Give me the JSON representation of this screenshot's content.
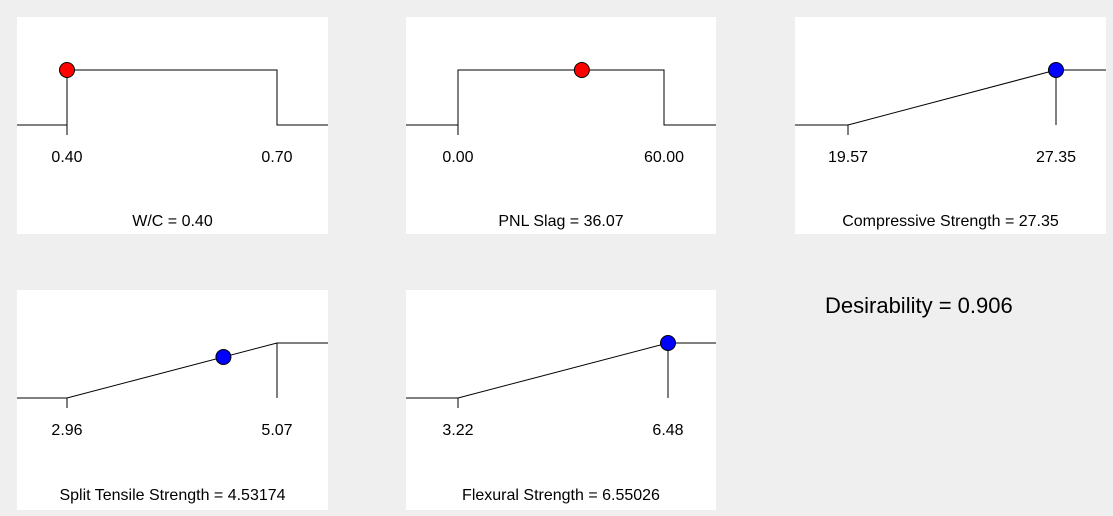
{
  "colors": {
    "factor_point": "#ff0000",
    "response_point": "#0000ff",
    "line": "#000000",
    "panel_bg": "#ffffff",
    "page_bg": "#efefef"
  },
  "chart_data": [
    {
      "type": "line",
      "kind": "factor",
      "label": "W/C = 0.40",
      "low": "0.40",
      "high": "0.70",
      "low_value": 0.4,
      "high_value": 0.7,
      "current": 0.4,
      "shape": "box"
    },
    {
      "type": "line",
      "kind": "factor",
      "label": "PNL Slag = 36.07",
      "low": "0.00",
      "high": "60.00",
      "low_value": 0.0,
      "high_value": 60.0,
      "current": 36.07,
      "shape": "box"
    },
    {
      "type": "line",
      "kind": "response",
      "label": "Compressive Strength = 27.35",
      "low": "19.57",
      "high": "27.35",
      "low_value": 19.57,
      "high_value": 27.35,
      "current": 27.35,
      "shape": "ramp"
    },
    {
      "type": "line",
      "kind": "response",
      "label": "Split Tensile Strength = 4.53174",
      "low": "2.96",
      "high": "5.07",
      "low_value": 2.96,
      "high_value": 5.07,
      "current": 4.53174,
      "shape": "ramp"
    },
    {
      "type": "line",
      "kind": "response",
      "label": "Flexural Strength = 6.55026",
      "low": "3.22",
      "high": "6.48",
      "low_value": 3.22,
      "high_value": 6.48,
      "current": 6.55026,
      "shape": "ramp"
    }
  ],
  "desirability": "Desirability = 0.906"
}
